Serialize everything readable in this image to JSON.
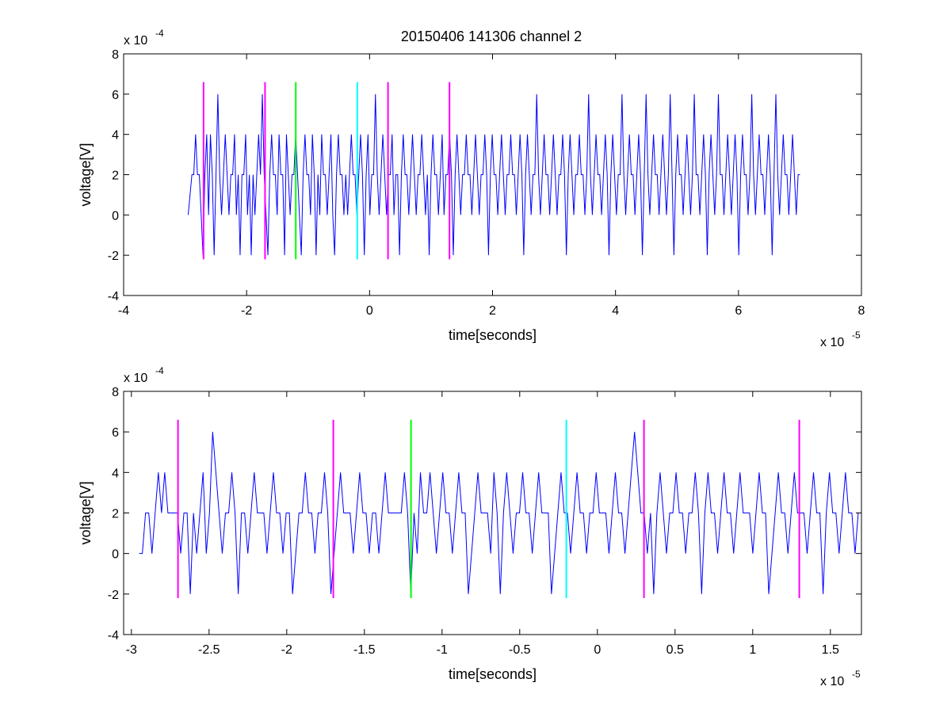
{
  "figure": {
    "title": "20150406 141306 channel 2"
  },
  "colors": {
    "signal": "#0000ff",
    "magenta_marker": "#ff00ff",
    "green_marker": "#00ff00",
    "cyan_marker": "#00ffff",
    "axes": "#000000",
    "background": "#ffffff"
  },
  "chart_data": [
    {
      "type": "line",
      "title": "20150406 141306 channel 2",
      "xlabel": "time[seconds]",
      "ylabel": "voltage[V]",
      "x_exponent_label": "x 10",
      "x_exponent": "-5",
      "y_exponent_label": "x 10",
      "y_exponent": "-4",
      "x_scale": 1e-05,
      "y_scale": 0.0001,
      "xlim": [
        -4,
        8
      ],
      "ylim": [
        -4,
        8
      ],
      "xticks": [
        -4,
        -2,
        0,
        2,
        4,
        6,
        8
      ],
      "xtick_labels": [
        "-4",
        "-2",
        "0",
        "2",
        "4",
        "6",
        "8"
      ],
      "yticks": [
        -4,
        -2,
        0,
        2,
        4,
        6,
        8
      ],
      "ytick_labels": [
        "-4",
        "-2",
        "0",
        "2",
        "4",
        "6",
        "8"
      ],
      "grid": false,
      "series": [
        {
          "color": "#0000ff",
          "x_start": -2.95,
          "x_end": 7.0,
          "values": [
            0,
            1,
            2,
            2,
            4,
            2,
            2,
            0,
            -2,
            2,
            4,
            0,
            4,
            2,
            -2,
            2,
            6,
            2,
            0,
            2,
            4,
            2,
            0,
            2,
            2,
            4,
            0,
            2,
            -2,
            2,
            2,
            4,
            0,
            2,
            -2,
            2,
            0,
            2,
            4,
            2,
            6,
            2,
            0,
            -2,
            2,
            4,
            2,
            2,
            0,
            4,
            2,
            2,
            -2,
            4,
            2,
            0,
            2,
            2,
            4,
            2,
            0,
            -2,
            2,
            4,
            2,
            2,
            0,
            4,
            2,
            -2,
            2,
            0,
            4,
            2,
            2,
            0,
            2,
            4,
            0,
            -2,
            2,
            4,
            2,
            2,
            0,
            2,
            0,
            2,
            4,
            2,
            2,
            0,
            2,
            4,
            2,
            -2,
            2,
            4,
            0,
            2,
            2,
            6,
            2,
            0,
            2,
            4,
            2,
            0,
            2,
            2,
            4,
            0,
            2,
            2,
            -2,
            2,
            4,
            2,
            2,
            0,
            2,
            4,
            2,
            0,
            2,
            2,
            4,
            2,
            0,
            2,
            -2,
            2,
            4,
            2,
            2,
            0,
            2,
            4,
            0,
            2,
            2,
            4,
            2,
            -2,
            2,
            4,
            2,
            0,
            2,
            2,
            4,
            2,
            2,
            0,
            2,
            4,
            2,
            0,
            2,
            2,
            4,
            2,
            -2,
            2,
            4,
            2,
            2,
            0,
            2,
            4,
            2,
            0,
            2,
            2,
            4,
            2,
            2,
            0,
            2,
            4,
            2,
            -2,
            2,
            4,
            2,
            0,
            2,
            2,
            6,
            2,
            0,
            2,
            4,
            2,
            2,
            0,
            2,
            4,
            2,
            0,
            2,
            2,
            4,
            2,
            -2,
            2,
            4,
            2,
            0,
            2,
            2,
            4,
            2,
            2,
            0,
            2,
            6,
            2,
            0,
            2,
            4,
            2,
            2,
            0,
            2,
            4,
            2,
            -2,
            2,
            4,
            2,
            0,
            2,
            2,
            6,
            2,
            0,
            2,
            4,
            2,
            2,
            0,
            2,
            4,
            2,
            -2,
            2,
            6,
            2,
            0,
            2,
            4,
            2,
            2,
            0,
            2,
            4,
            2,
            0,
            2,
            6,
            2,
            -2,
            2,
            4,
            2,
            2,
            0,
            2,
            4,
            2,
            0,
            2,
            6,
            2,
            2,
            0,
            2,
            4,
            2,
            -2,
            2,
            4,
            2,
            0,
            2,
            6,
            2,
            2,
            0,
            2,
            4,
            2,
            0,
            2,
            4,
            2,
            -2,
            2,
            4,
            2,
            2,
            0,
            2,
            6,
            2,
            0,
            2,
            4,
            2,
            2,
            0,
            2,
            4,
            2,
            -2,
            2,
            6,
            2,
            0,
            2,
            4,
            2,
            2,
            0,
            2,
            4,
            2,
            0,
            2,
            2
          ]
        }
      ],
      "markers": [
        {
          "x": -2.7,
          "color": "magenta"
        },
        {
          "x": -1.7,
          "color": "magenta"
        },
        {
          "x": -1.2,
          "color": "green"
        },
        {
          "x": -0.2,
          "color": "cyan"
        },
        {
          "x": 0.3,
          "color": "magenta"
        },
        {
          "x": 1.3,
          "color": "magenta"
        }
      ],
      "marker_range": [
        -2.2,
        6.6
      ]
    },
    {
      "type": "line",
      "title": "",
      "xlabel": "time[seconds]",
      "ylabel": "voltage[V]",
      "x_exponent_label": "x 10",
      "x_exponent": "-5",
      "y_exponent_label": "x 10",
      "y_exponent": "-4",
      "x_scale": 1e-05,
      "y_scale": 0.0001,
      "xlim": [
        -3.05,
        1.7
      ],
      "ylim": [
        -4,
        8
      ],
      "xticks": [
        -3,
        -2.5,
        -2,
        -1.5,
        -1,
        -0.5,
        0,
        0.5,
        1,
        1.5
      ],
      "xtick_labels": [
        "-3",
        "-2.5",
        "-2",
        "-1.5",
        "-1",
        "-0.5",
        "0",
        "0.5",
        "1",
        "1.5"
      ],
      "yticks": [
        -4,
        -2,
        0,
        2,
        4,
        6,
        8
      ],
      "ytick_labels": [
        "-4",
        "-2",
        "0",
        "2",
        "4",
        "6",
        "8"
      ],
      "grid": false,
      "series": [
        {
          "color": "#0000ff",
          "x_start": -2.95,
          "x_end": 1.7,
          "values": [
            0,
            0,
            2,
            2,
            0,
            2,
            4,
            2,
            4,
            2,
            2,
            2,
            2,
            0,
            2,
            2,
            -2,
            2,
            0,
            2,
            4,
            0,
            2,
            6,
            4,
            2,
            0,
            2,
            2,
            4,
            2,
            -2,
            2,
            2,
            0,
            2,
            4,
            2,
            2,
            2,
            0,
            2,
            4,
            2,
            2,
            0,
            2,
            2,
            -2,
            0,
            2,
            2,
            4,
            2,
            2,
            0,
            2,
            2,
            4,
            2,
            -2,
            0,
            2,
            4,
            2,
            2,
            2,
            0,
            2,
            4,
            2,
            2,
            0,
            2,
            2,
            0,
            2,
            4,
            2,
            2,
            2,
            2,
            2,
            4,
            2,
            -2,
            2,
            0,
            4,
            2,
            2,
            4,
            2,
            0,
            2,
            4,
            2,
            2,
            0,
            2,
            4,
            2,
            2,
            -2,
            0,
            2,
            4,
            2,
            2,
            2,
            0,
            4,
            2,
            -2,
            2,
            4,
            2,
            0,
            2,
            2,
            4,
            2,
            2,
            0,
            2,
            4,
            2,
            2,
            2,
            -2,
            0,
            2,
            4,
            2,
            2,
            0,
            2,
            4,
            2,
            2,
            0,
            2,
            2,
            4,
            2,
            2,
            2,
            0,
            2,
            4,
            2,
            2,
            0,
            2,
            4,
            6,
            4,
            2,
            2,
            0,
            2,
            -2,
            2,
            4,
            2,
            0,
            2,
            2,
            4,
            2,
            2,
            0,
            2,
            2,
            4,
            2,
            -2,
            2,
            4,
            2,
            2,
            0,
            2,
            4,
            2,
            2,
            0,
            2,
            4,
            2,
            2,
            2,
            0,
            2,
            4,
            2,
            2,
            -2,
            0,
            2,
            4,
            2,
            2,
            0,
            2,
            4,
            2,
            2,
            2,
            0,
            2,
            4,
            2,
            2,
            -2,
            2,
            4,
            2,
            2,
            0,
            2,
            4,
            2,
            2,
            0,
            2,
            2
          ]
        }
      ],
      "markers": [
        {
          "x": -2.7,
          "color": "magenta"
        },
        {
          "x": -1.7,
          "color": "magenta"
        },
        {
          "x": -1.2,
          "color": "green"
        },
        {
          "x": -0.2,
          "color": "cyan"
        },
        {
          "x": 0.3,
          "color": "magenta"
        },
        {
          "x": 1.3,
          "color": "magenta"
        }
      ],
      "marker_range": [
        -2.2,
        6.6
      ]
    }
  ]
}
